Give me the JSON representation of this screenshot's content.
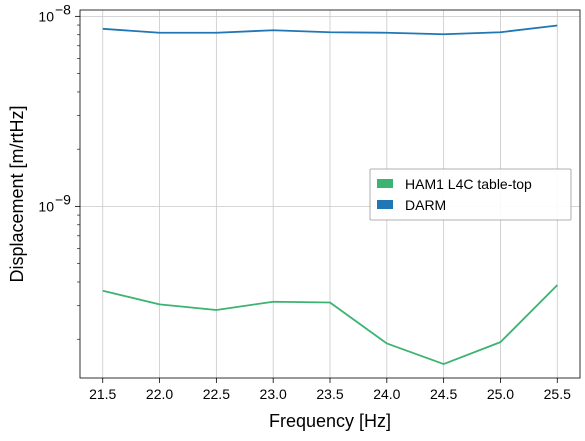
{
  "chart_data": {
    "type": "line",
    "xlabel": "Frequency [Hz]",
    "ylabel": "Displacement [m/rtHz]",
    "x": [
      21.5,
      22.0,
      22.5,
      23.0,
      23.5,
      24.0,
      24.5,
      25.0,
      25.5
    ],
    "xlim": [
      21.3,
      25.7
    ],
    "xticks": [
      21.5,
      22.0,
      22.5,
      23.0,
      23.5,
      24.0,
      24.5,
      25.0,
      25.5
    ],
    "xtick_labels": [
      "21.5",
      "22.0",
      "22.5",
      "23.0",
      "23.5",
      "24.0",
      "24.5",
      "25.0",
      "25.5"
    ],
    "yscale": "log",
    "ylim": [
      1.25e-10,
      1.08e-08
    ],
    "yticks": [
      1e-09,
      1e-08
    ],
    "ytick_base": "10",
    "ytick_exponents": [
      "−9",
      "−8"
    ],
    "grid": true,
    "legend_placement": "center-right",
    "series": [
      {
        "name": "HAM1 L4C table-top",
        "color": "#3cb371",
        "values": [
          3.6e-10,
          3.05e-10,
          2.85e-10,
          3.15e-10,
          3.12e-10,
          1.9e-10,
          1.48e-10,
          1.93e-10,
          3.85e-10
        ]
      },
      {
        "name": "DARM",
        "color": "#1f77b4",
        "values": [
          8.6e-09,
          8.2e-09,
          8.2e-09,
          8.45e-09,
          8.25e-09,
          8.2e-09,
          8.05e-09,
          8.25e-09,
          8.95e-09
        ]
      }
    ]
  }
}
